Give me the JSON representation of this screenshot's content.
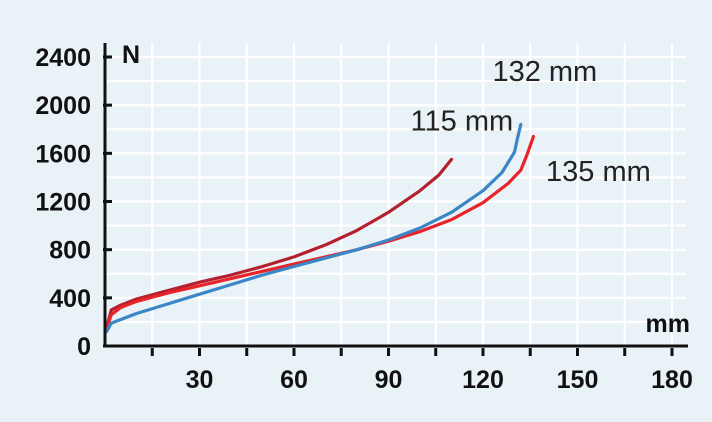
{
  "chart_data": {
    "type": "line",
    "xlabel": "mm",
    "ylabel": "N",
    "xlim": [
      0,
      180
    ],
    "ylim": [
      0,
      2400
    ],
    "x_ticks": [
      30,
      60,
      90,
      120,
      150,
      180
    ],
    "x_minor_ticks": [
      15,
      45,
      75,
      105,
      135,
      165
    ],
    "y_ticks": [
      0,
      400,
      800,
      1200,
      1600,
      2000,
      2400
    ],
    "grid": true,
    "annotations": [
      {
        "text": "115 mm",
        "x": 97,
        "y": 1790
      },
      {
        "text": "132 mm",
        "x": 123,
        "y": 2200
      },
      {
        "text": "135 mm",
        "x": 140,
        "y": 1370
      }
    ],
    "series": [
      {
        "color": "#b5202f",
        "x": [
          0.5,
          2,
          5,
          10,
          20,
          30,
          40,
          50,
          60,
          70,
          80,
          90,
          100,
          106,
          110
        ],
        "y": [
          150,
          300,
          340,
          390,
          460,
          530,
          590,
          660,
          740,
          840,
          960,
          1110,
          1290,
          1420,
          1550
        ]
      },
      {
        "color": "#e8232a",
        "x": [
          0.5,
          2,
          5,
          10,
          20,
          30,
          40,
          50,
          60,
          70,
          80,
          90,
          100,
          110,
          120,
          128,
          132,
          134,
          136
        ],
        "y": [
          150,
          260,
          320,
          370,
          440,
          500,
          560,
          620,
          680,
          740,
          800,
          870,
          950,
          1050,
          1190,
          1350,
          1460,
          1590,
          1740
        ]
      },
      {
        "color": "#3a86c6",
        "x": [
          0.5,
          2,
          5,
          10,
          20,
          30,
          40,
          50,
          60,
          70,
          80,
          90,
          100,
          110,
          120,
          126,
          130,
          131,
          132
        ],
        "y": [
          120,
          190,
          220,
          270,
          350,
          430,
          510,
          590,
          660,
          730,
          800,
          880,
          980,
          1110,
          1290,
          1440,
          1610,
          1730,
          1840
        ]
      }
    ]
  }
}
